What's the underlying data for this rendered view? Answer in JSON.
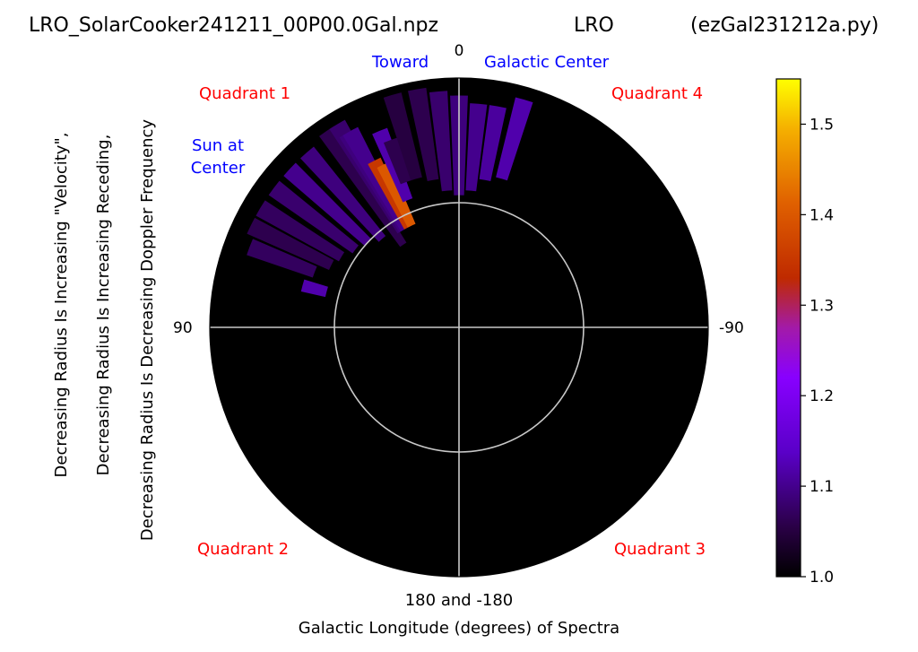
{
  "header": {
    "file": "LRO_SolarCooker241211_00P00.0Gal.npz",
    "site": "LRO",
    "script": "(ezGal231212a.py)"
  },
  "labels": {
    "top_zero": "0",
    "toward": "Toward",
    "galactic_center": "Galactic Center",
    "quadrant1": "Quadrant 1",
    "quadrant2": "Quadrant 2",
    "quadrant3": "Quadrant 3",
    "quadrant4": "Quadrant 4",
    "sun_line1": "Sun at",
    "sun_line2": "Center",
    "left_90": "90",
    "right_neg90": "-90",
    "bottom_180": "180 and -180",
    "xlabel": "Galactic Longitude (degrees) of Spectra",
    "ylabel_line1": "Decreasing Radius Is Increasing \"Velocity\",",
    "ylabel_line2": "Decreasing Radius Is Increasing Receding,",
    "ylabel_line3": "Decreasing Radius Is Decreasing Doppler Frequency"
  },
  "colors": {
    "plot_background": "#000000",
    "grid": "#c8c8c8",
    "quadrant_text": "#ff0000",
    "blue_text": "#0000ff"
  },
  "chart_data": {
    "type": "heatmap",
    "projection": "polar",
    "theta_direction": "counterclockwise",
    "theta_zero": "top",
    "theta_tick_labels": [
      "0",
      "90",
      "180 and -180",
      "-90"
    ],
    "grid": true,
    "colorbar": {
      "colormap": "gnuplot",
      "range": [
        1.0,
        1.55
      ],
      "ticks": [
        "1.0",
        "1.1",
        "1.2",
        "1.3",
        "1.4",
        "1.5"
      ]
    },
    "wedges": [
      {
        "theta_deg": 75,
        "r_range": [
          0.55,
          0.65
        ],
        "value": 1.12
      },
      {
        "theta_deg": 69,
        "r_range": [
          0.62,
          0.9
        ],
        "value": 1.07
      },
      {
        "theta_deg": 64,
        "r_range": [
          0.57,
          0.93
        ],
        "value": 1.06
      },
      {
        "theta_deg": 59,
        "r_range": [
          0.55,
          0.93
        ],
        "value": 1.07
      },
      {
        "theta_deg": 53,
        "r_range": [
          0.52,
          0.93
        ],
        "value": 1.08
      },
      {
        "theta_deg": 47,
        "r_range": [
          0.5,
          0.93
        ],
        "value": 1.1
      },
      {
        "theta_deg": 41,
        "r_range": [
          0.47,
          0.93
        ],
        "value": 1.09
      },
      {
        "theta_deg": 34,
        "r_range": [
          0.4,
          0.95
        ],
        "value": 1.06
      },
      {
        "theta_deg": 31,
        "r_range": [
          0.45,
          0.95
        ],
        "value": 1.08
      },
      {
        "theta_deg": 30,
        "r_range": [
          0.45,
          0.9
        ],
        "value": 1.09
      },
      {
        "theta_deg": 29,
        "r_range": [
          0.45,
          0.9
        ],
        "value": 1.1
      },
      {
        "theta_deg": 27,
        "r_range": [
          0.45,
          0.75
        ],
        "value": 1.35
      },
      {
        "theta_deg": 25,
        "r_range": [
          0.45,
          0.72
        ],
        "value": 1.4
      },
      {
        "theta_deg": 22,
        "r_range": [
          0.55,
          0.85
        ],
        "value": 1.12
      },
      {
        "theta_deg": 20,
        "r_range": [
          0.62,
          0.8
        ],
        "value": 1.06
      },
      {
        "theta_deg": 16,
        "r_range": [
          0.62,
          0.97
        ],
        "value": 1.05
      },
      {
        "theta_deg": 10,
        "r_range": [
          0.6,
          0.97
        ],
        "value": 1.06
      },
      {
        "theta_deg": 5,
        "r_range": [
          0.55,
          0.95
        ],
        "value": 1.08
      },
      {
        "theta_deg": 0,
        "r_range": [
          0.53,
          0.93
        ],
        "value": 1.09
      },
      {
        "theta_deg": -5,
        "r_range": [
          0.55,
          0.9
        ],
        "value": 1.1
      },
      {
        "theta_deg": -10,
        "r_range": [
          0.6,
          0.9
        ],
        "value": 1.11
      },
      {
        "theta_deg": -16,
        "r_range": [
          0.62,
          0.95
        ],
        "value": 1.12
      }
    ]
  }
}
